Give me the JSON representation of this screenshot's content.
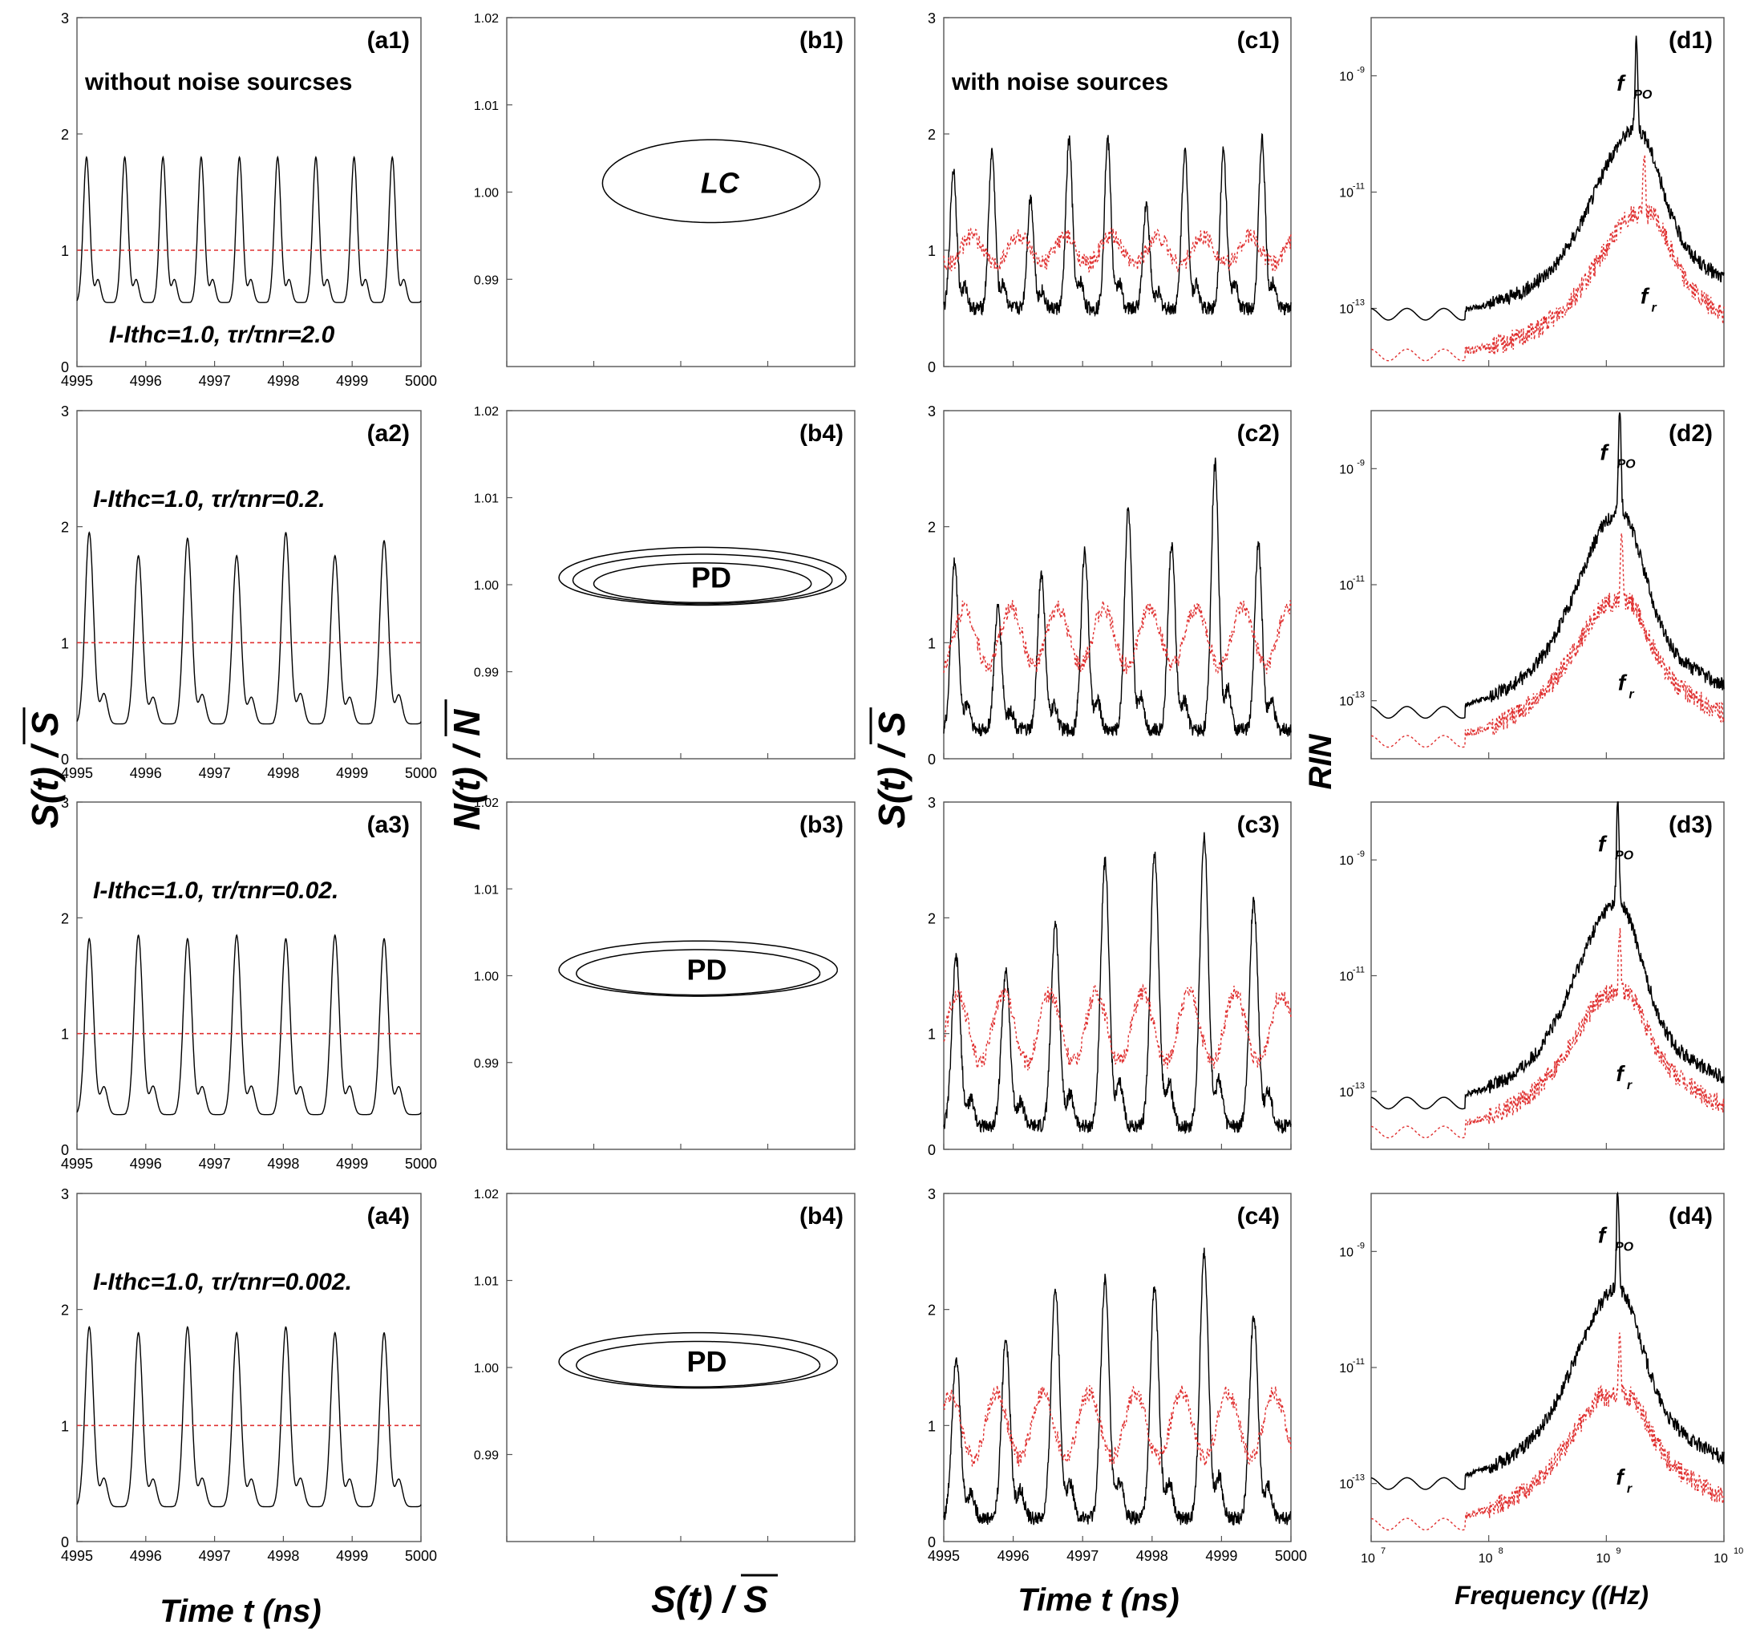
{
  "labels": {
    "ylabel_a": "S(t) / S",
    "ylabel_b": "N(t) / N",
    "ylabel_c": "S(t) / S",
    "ylabel_d": "RIN",
    "xlabel_a": "Time t (ns)",
    "xlabel_b": "S(t) / S",
    "xlabel_c": "Time t (ns)",
    "xlabel_d": "Frequency ((Hz)"
  },
  "colors": {
    "signal": "#000000",
    "mean_line": "#e03030",
    "noisy_mean": "#e03030",
    "f_r_label": "#b000b0"
  },
  "chart_data": [
    {
      "type": "line",
      "panel": "(a1)",
      "xlim": [
        4995,
        5000
      ],
      "ylim": [
        0,
        3
      ],
      "xticks": [
        "4995",
        "4996",
        "4997",
        "4998",
        "4999",
        "5000"
      ],
      "yticks": [
        "0",
        "1",
        "2",
        "3"
      ],
      "annotation": "without noise sourcses",
      "condition": "I-Ithc=1.0, τr/τnr=2.0",
      "series": [
        {
          "role": "S",
          "style": "solid",
          "peaks": [
            1.8,
            1.8,
            1.8,
            1.8,
            1.8,
            1.8,
            1.8,
            1.8,
            1.8
          ],
          "trough": 0.55
        },
        {
          "role": "mean",
          "style": "dashed",
          "value": 1.0
        }
      ]
    },
    {
      "type": "line",
      "panel": "(a2)",
      "xlim": [
        4995,
        5000
      ],
      "ylim": [
        0,
        3
      ],
      "xticks": [
        "4995",
        "4996",
        "4997",
        "4998",
        "4999",
        "5000"
      ],
      "yticks": [
        "0",
        "1",
        "2",
        "3"
      ],
      "condition": "I-Ithc=1.0, τr/τnr=0.2.",
      "series": [
        {
          "role": "S",
          "style": "solid",
          "peaks": [
            1.95,
            1.75,
            1.9,
            1.75,
            1.95,
            1.75,
            1.88
          ],
          "trough": 0.3
        },
        {
          "role": "mean",
          "style": "dashed",
          "value": 1.0
        }
      ]
    },
    {
      "type": "line",
      "panel": "(a3)",
      "xlim": [
        4995,
        5000
      ],
      "ylim": [
        0,
        3
      ],
      "xticks": [
        "4995",
        "4996",
        "4997",
        "4998",
        "4999",
        "5000"
      ],
      "yticks": [
        "0",
        "1",
        "2",
        "3"
      ],
      "condition": "I-Ithc=1.0, τr/τnr=0.02.",
      "series": [
        {
          "role": "S",
          "style": "solid",
          "peaks": [
            1.82,
            1.85,
            1.82,
            1.85,
            1.82,
            1.85,
            1.82
          ],
          "trough": 0.3
        },
        {
          "role": "mean",
          "style": "dashed",
          "value": 1.0
        }
      ]
    },
    {
      "type": "line",
      "panel": "(a4)",
      "xlim": [
        4995,
        5000
      ],
      "ylim": [
        0,
        3
      ],
      "xticks": [
        "4995",
        "4996",
        "4997",
        "4998",
        "4999",
        "5000"
      ],
      "yticks": [
        "0",
        "1",
        "2",
        "3"
      ],
      "condition": "I-Ithc=1.0, τr/τnr=0.002.",
      "series": [
        {
          "role": "S",
          "style": "solid",
          "peaks": [
            1.85,
            1.8,
            1.85,
            1.8,
            1.85,
            1.8,
            1.8
          ],
          "trough": 0.3
        },
        {
          "role": "mean",
          "style": "dashed",
          "value": 1.0
        }
      ]
    },
    {
      "type": "line",
      "panel": "(b1)",
      "xlim": [
        0.0,
        2.0
      ],
      "ylim": [
        0.98,
        1.02
      ],
      "xticks": [
        "0.0",
        "0.5",
        "1.0",
        "1.5",
        "2.0"
      ],
      "yticks": [
        "0.99",
        "1.00",
        "1.01",
        "1.02"
      ],
      "loop_label": "LC",
      "loops": [
        {
          "xmin": 0.55,
          "xmax": 1.8,
          "ymin": 0.996,
          "ymax": 1.006
        }
      ]
    },
    {
      "type": "line",
      "panel": "(b4)",
      "xlim": [
        0.0,
        2.0
      ],
      "ylim": [
        0.98,
        1.02
      ],
      "xticks": [
        "0.0",
        "0.5",
        "1.0",
        "1.5",
        "2.0"
      ],
      "yticks": [
        "0.99",
        "1.00",
        "1.01",
        "1.02"
      ],
      "loop_label": "PD",
      "loops": [
        {
          "xmin": 0.3,
          "xmax": 1.95,
          "ymin": 0.9973,
          "ymax": 1.0043
        },
        {
          "xmin": 0.38,
          "xmax": 1.87,
          "ymin": 0.9975,
          "ymax": 1.0035
        },
        {
          "xmin": 0.5,
          "xmax": 1.75,
          "ymin": 0.9977,
          "ymax": 1.0025
        }
      ]
    },
    {
      "type": "line",
      "panel": "(b3)",
      "xlim": [
        0.0,
        2.0
      ],
      "ylim": [
        0.98,
        1.02
      ],
      "xticks": [
        "0.0",
        "0.5",
        "1.0",
        "1.5",
        "2.0"
      ],
      "yticks": [
        "0.99",
        "1.00",
        "1.01",
        "1.02"
      ],
      "loop_label": "PD",
      "loops": [
        {
          "xmin": 0.3,
          "xmax": 1.9,
          "ymin": 0.9973,
          "ymax": 1.004
        },
        {
          "xmin": 0.4,
          "xmax": 1.8,
          "ymin": 0.9975,
          "ymax": 1.003
        }
      ]
    },
    {
      "type": "line",
      "panel": "(b4)",
      "xlim": [
        0.0,
        2.0
      ],
      "ylim": [
        0.98,
        1.02
      ],
      "xticks": [
        "0.0",
        "0.5",
        "1.0",
        "1.5",
        "2.0"
      ],
      "yticks": [
        "0.99",
        "1.00",
        "1.01",
        "1.02"
      ],
      "loop_label": "PD",
      "loops": [
        {
          "xmin": 0.3,
          "xmax": 1.9,
          "ymin": 0.9973,
          "ymax": 1.004
        },
        {
          "xmin": 0.4,
          "xmax": 1.8,
          "ymin": 0.9975,
          "ymax": 1.003
        }
      ]
    },
    {
      "type": "line",
      "panel": "(c1)",
      "xlim": [
        4995,
        5000
      ],
      "ylim": [
        0,
        3
      ],
      "xticks": [],
      "yticks": [
        "0",
        "1",
        "2",
        "3"
      ],
      "annotation": "with noise sources",
      "series": [
        {
          "role": "S",
          "style": "solid",
          "peaks": [
            1.7,
            1.85,
            1.45,
            1.95,
            1.95,
            1.4,
            1.85,
            1.85,
            1.95
          ],
          "trough": 0.5
        },
        {
          "role": "S_mean",
          "style": "dotted",
          "center": 1.0,
          "amp": 0.12
        }
      ]
    },
    {
      "type": "line",
      "panel": "(c2)",
      "xlim": [
        4995,
        5000
      ],
      "ylim": [
        0,
        3
      ],
      "xticks": [],
      "yticks": [
        "0",
        "1",
        "2",
        "3"
      ],
      "series": [
        {
          "role": "S",
          "style": "solid",
          "peaks": [
            1.7,
            1.3,
            1.6,
            1.8,
            2.15,
            1.85,
            2.55,
            1.85
          ],
          "trough": 0.25
        },
        {
          "role": "S_mean",
          "style": "dotted",
          "center": 1.05,
          "amp": 0.25
        }
      ]
    },
    {
      "type": "line",
      "panel": "(c3)",
      "xlim": [
        4995,
        5000
      ],
      "ylim": [
        0,
        3
      ],
      "xticks": [],
      "yticks": [
        "0",
        "1",
        "2",
        "3"
      ],
      "series": [
        {
          "role": "S",
          "style": "solid",
          "peaks": [
            1.65,
            1.55,
            1.95,
            2.5,
            2.55,
            2.7,
            2.15
          ],
          "trough": 0.2
        },
        {
          "role": "S_mean",
          "style": "dotted",
          "center": 1.05,
          "amp": 0.3
        }
      ]
    },
    {
      "type": "line",
      "panel": "(c4)",
      "xlim": [
        4995,
        5000
      ],
      "ylim": [
        0,
        3
      ],
      "xticks": [
        "4995",
        "4996",
        "4997",
        "4998",
        "4999",
        "5000"
      ],
      "yticks": [
        "0",
        "1",
        "2",
        "3"
      ],
      "series": [
        {
          "role": "S",
          "style": "solid",
          "peaks": [
            1.6,
            1.75,
            2.2,
            2.25,
            2.2,
            2.5,
            1.95
          ],
          "trough": 0.2
        },
        {
          "role": "S_mean",
          "style": "dotted",
          "center": 1.0,
          "amp": 0.28
        }
      ]
    },
    {
      "type": "line",
      "panel": "(d1)",
      "xscale": "log",
      "xlim": [
        10000000.0,
        10000000000.0
      ],
      "yscale": "log",
      "ylim": [
        1e-14,
        1e-08
      ],
      "xticks": [],
      "yticks": [
        "10",
        "10",
        "10"
      ],
      "ytick_exponents": [
        "-13",
        "-11",
        "-9"
      ],
      "peak_labels": [
        "f_PO",
        "f_r"
      ],
      "series": [
        {
          "role": "RIN_noisy",
          "style": "solid",
          "floor_log": -13.1,
          "peak_freq": 1800000000.0,
          "peak_log": -9.5
        },
        {
          "role": "RIN_mean",
          "style": "dotted",
          "floor_log": -13.8,
          "peak_freq": 2100000000.0,
          "peak_log": -11.4
        }
      ]
    },
    {
      "type": "line",
      "panel": "(d2)",
      "xscale": "log",
      "xlim": [
        10000000.0,
        10000000000.0
      ],
      "yscale": "log",
      "ylim": [
        1e-14,
        1e-08
      ],
      "xticks": [],
      "yticks": [
        "10",
        "10",
        "10"
      ],
      "ytick_exponents": [
        "-13",
        "-11",
        "-9"
      ],
      "peak_labels": [
        "f_PO",
        "f_r"
      ],
      "series": [
        {
          "role": "RIN_noisy",
          "style": "solid",
          "floor_log": -13.2,
          "peak_freq": 1300000000.0,
          "peak_log": -9.1
        },
        {
          "role": "RIN_mean",
          "style": "dotted",
          "floor_log": -13.7,
          "peak_freq": 1350000000.0,
          "peak_log": -11.3
        }
      ]
    },
    {
      "type": "line",
      "panel": "(d3)",
      "xscale": "log",
      "xlim": [
        10000000.0,
        10000000000.0
      ],
      "yscale": "log",
      "ylim": [
        1e-14,
        1e-08
      ],
      "xticks": [],
      "yticks": [
        "10",
        "10",
        "10"
      ],
      "ytick_exponents": [
        "-13",
        "-11",
        "-9"
      ],
      "peak_labels": [
        "f_PO",
        "f_r"
      ],
      "series": [
        {
          "role": "RIN_noisy",
          "style": "solid",
          "floor_log": -13.2,
          "peak_freq": 1250000000.0,
          "peak_log": -9.1
        },
        {
          "role": "RIN_mean",
          "style": "dotted",
          "floor_log": -13.7,
          "peak_freq": 1300000000.0,
          "peak_log": -11.3
        }
      ]
    },
    {
      "type": "line",
      "panel": "(d4)",
      "xscale": "log",
      "xlim": [
        10000000.0,
        10000000000.0
      ],
      "yscale": "log",
      "ylim": [
        1e-14,
        1e-08
      ],
      "xticks": [
        "10",
        "10",
        "10",
        "10"
      ],
      "xtick_exponents": [
        "7",
        "8",
        "9",
        "10"
      ],
      "yticks": [
        "10",
        "10",
        "10"
      ],
      "ytick_exponents": [
        "-13",
        "-11",
        "-9"
      ],
      "peak_labels": [
        "f_PO",
        "f_r"
      ],
      "series": [
        {
          "role": "RIN_noisy",
          "style": "solid",
          "floor_log": -13.0,
          "peak_freq": 1250000000.0,
          "peak_log": -9.1
        },
        {
          "role": "RIN_mean",
          "style": "dotted",
          "floor_log": -13.7,
          "peak_freq": 1300000000.0,
          "peak_log": -11.5
        }
      ]
    }
  ]
}
